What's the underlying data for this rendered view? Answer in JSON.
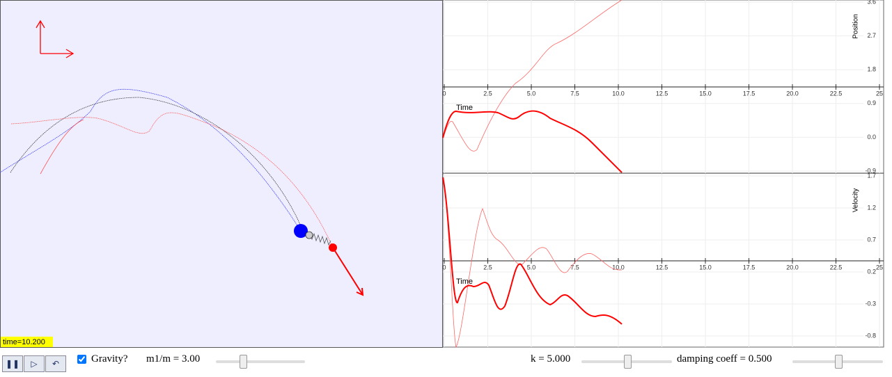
{
  "simulation": {
    "time_label": "time=10.200"
  },
  "graph_position": {
    "y_label": "Position",
    "x_label": "Time",
    "yticks": [
      "3.6",
      "2.7",
      "1.8",
      "0.9",
      "0.0",
      "-0.9"
    ],
    "xticks": [
      "0",
      "2.5",
      "5.0",
      "7.5",
      "10.0",
      "12.5",
      "15.0",
      "17.5",
      "20.0",
      "22.5",
      "25"
    ]
  },
  "graph_velocity": {
    "y_label": "Velocity",
    "x_label": "Time",
    "yticks": [
      "1.7",
      "1.2",
      "0.7",
      "0.2",
      "-0.3",
      "-0.8"
    ],
    "xticks": [
      "0",
      "2.5",
      "5.0",
      "7.5",
      "10.0",
      "12.5",
      "15.0",
      "17.5",
      "20.0",
      "22.5",
      "25"
    ]
  },
  "controls": {
    "gravity": "Gravity?",
    "mass_ratio": "m1/m = 3.00",
    "k": "k = 5.000",
    "damping": "damping coeff = 0.500"
  }
}
